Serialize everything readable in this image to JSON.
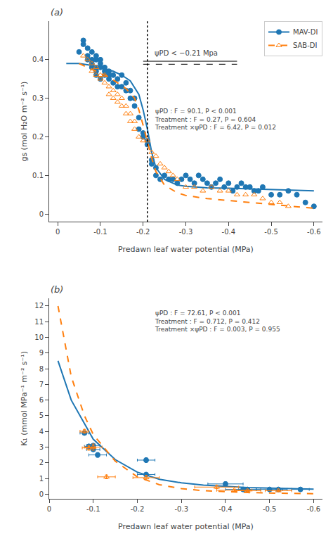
{
  "chart_data": [
    {
      "type": "scatter",
      "title": "(a)",
      "xlabel": "Predawn leaf water potential (MPa)",
      "ylabel": "gs (mol H₂O m⁻² s⁻¹)",
      "xlim": [
        0.02,
        -0.62
      ],
      "ylim": [
        -0.02,
        0.5
      ],
      "xticks": [
        0,
        -0.1,
        -0.2,
        -0.3,
        -0.4,
        -0.5,
        -0.6
      ],
      "yticks": [
        0,
        0.1,
        0.2,
        0.3,
        0.4
      ],
      "grid": false,
      "legend": "upper right",
      "vline_x": -0.21,
      "annotation": "ψPD < −0.21 Mpa",
      "stats": [
        "ψPD : F = 90.1, P < 0.001",
        "Treatment : F = 0.27, P = 0.604",
        "Treatment ×ψPD : F = 6.42, P = 0.012"
      ],
      "series": [
        {
          "name": "MAV-DI",
          "color": "#1f77b4",
          "marker": "circle",
          "line_style": "solid",
          "x": [
            -0.05,
            -0.06,
            -0.06,
            -0.07,
            -0.07,
            -0.07,
            -0.08,
            -0.08,
            -0.08,
            -0.08,
            -0.09,
            -0.09,
            -0.09,
            -0.09,
            -0.09,
            -0.1,
            -0.1,
            -0.1,
            -0.1,
            -0.11,
            -0.11,
            -0.11,
            -0.12,
            -0.12,
            -0.12,
            -0.13,
            -0.13,
            -0.14,
            -0.14,
            -0.15,
            -0.15,
            -0.16,
            -0.16,
            -0.17,
            -0.17,
            -0.18,
            -0.18,
            -0.19,
            -0.19,
            -0.2,
            -0.2,
            -0.21,
            -0.21,
            -0.22,
            -0.22,
            -0.23,
            -0.23,
            -0.24,
            -0.25,
            -0.26,
            -0.27,
            -0.28,
            -0.29,
            -0.3,
            -0.31,
            -0.32,
            -0.33,
            -0.34,
            -0.35,
            -0.36,
            -0.37,
            -0.38,
            -0.39,
            -0.4,
            -0.41,
            -0.42,
            -0.43,
            -0.44,
            -0.45,
            -0.46,
            -0.47,
            -0.48,
            -0.5,
            -0.52,
            -0.54,
            -0.56,
            -0.58,
            -0.6
          ],
          "values": [
            0.42,
            0.45,
            0.44,
            0.4,
            0.43,
            0.41,
            0.38,
            0.42,
            0.4,
            0.39,
            0.4,
            0.38,
            0.37,
            0.41,
            0.36,
            0.4,
            0.39,
            0.38,
            0.35,
            0.37,
            0.38,
            0.36,
            0.35,
            0.37,
            0.36,
            0.36,
            0.34,
            0.35,
            0.33,
            0.36,
            0.33,
            0.32,
            0.34,
            0.32,
            0.3,
            0.28,
            0.3,
            0.25,
            0.22,
            0.2,
            0.21,
            0.19,
            0.18,
            0.14,
            0.13,
            0.12,
            0.1,
            0.09,
            0.1,
            0.09,
            0.09,
            0.08,
            0.09,
            0.1,
            0.09,
            0.08,
            0.1,
            0.09,
            0.08,
            0.07,
            0.08,
            0.09,
            0.07,
            0.08,
            0.06,
            0.07,
            0.08,
            0.07,
            0.07,
            0.06,
            0.06,
            0.07,
            0.05,
            0.05,
            0.06,
            0.05,
            0.03,
            0.02
          ],
          "fit": {
            "x": [
              -0.02,
              -0.05,
              -0.08,
              -0.1,
              -0.13,
              -0.15,
              -0.17,
              -0.19,
              -0.2,
              -0.21,
              -0.22,
              -0.23,
              -0.25,
              -0.28,
              -0.3,
              -0.35,
              -0.4,
              -0.45,
              -0.5,
              -0.55,
              -0.6
            ],
            "values": [
              0.39,
              0.39,
              0.385,
              0.38,
              0.37,
              0.36,
              0.345,
              0.31,
              0.27,
              0.22,
              0.16,
              0.12,
              0.09,
              0.075,
              0.072,
              0.068,
              0.067,
              0.065,
              0.063,
              0.062,
              0.06
            ]
          }
        },
        {
          "name": "SAB-DI",
          "color": "#ff7f0e",
          "marker": "triangle-up-open",
          "line_style": "dash",
          "x": [
            -0.06,
            -0.07,
            -0.08,
            -0.08,
            -0.09,
            -0.09,
            -0.1,
            -0.1,
            -0.11,
            -0.11,
            -0.12,
            -0.12,
            -0.13,
            -0.13,
            -0.14,
            -0.14,
            -0.15,
            -0.15,
            -0.16,
            -0.16,
            -0.17,
            -0.17,
            -0.18,
            -0.18,
            -0.19,
            -0.2,
            -0.21,
            -0.22,
            -0.23,
            -0.24,
            -0.25,
            -0.26,
            -0.27,
            -0.28,
            -0.3,
            -0.32,
            -0.34,
            -0.36,
            -0.38,
            -0.4,
            -0.42,
            -0.44,
            -0.46,
            -0.48,
            -0.5,
            -0.52,
            -0.54
          ],
          "values": [
            0.41,
            0.4,
            0.37,
            0.39,
            0.36,
            0.38,
            0.36,
            0.35,
            0.36,
            0.34,
            0.33,
            0.31,
            0.32,
            0.3,
            0.31,
            0.29,
            0.3,
            0.28,
            0.28,
            0.26,
            0.24,
            0.26,
            0.22,
            0.24,
            0.2,
            0.19,
            0.19,
            0.16,
            0.15,
            0.13,
            0.12,
            0.11,
            0.1,
            0.09,
            0.07,
            0.07,
            0.06,
            0.07,
            0.06,
            0.06,
            0.05,
            0.05,
            0.05,
            0.04,
            0.03,
            0.03,
            0.02
          ],
          "fit": {
            "x": [
              -0.05,
              -0.08,
              -0.1,
              -0.12,
              -0.14,
              -0.16,
              -0.18,
              -0.19,
              -0.2,
              -0.21,
              -0.22,
              -0.23,
              -0.25,
              -0.28,
              -0.3,
              -0.35,
              -0.4,
              -0.45,
              -0.5,
              -0.55,
              -0.6
            ],
            "values": [
              0.39,
              0.375,
              0.365,
              0.355,
              0.34,
              0.325,
              0.3,
              0.27,
              0.23,
              0.185,
              0.145,
              0.11,
              0.075,
              0.055,
              0.048,
              0.04,
              0.035,
              0.03,
              0.025,
              0.02,
              0.015
            ]
          }
        }
      ]
    },
    {
      "type": "scatter",
      "title": "(b)",
      "xlabel": "Predawn leaf water potential (MPa)",
      "ylabel": "K₁ (mmol MPa⁻¹ m⁻² s⁻¹)",
      "xlim": [
        0.0,
        -0.62
      ],
      "ylim": [
        -0.3,
        12.5
      ],
      "xticks": [
        0,
        -0.1,
        -0.2,
        -0.3,
        -0.4,
        -0.5,
        -0.6
      ],
      "yticks": [
        0,
        1,
        2,
        3,
        4,
        5,
        6,
        7,
        8,
        9,
        10,
        11,
        12
      ],
      "grid": false,
      "stats": [
        "ψPD : F = 72.61, P < 0.001",
        "Treatment : F = 0.712, P = 0.412",
        "Treatment ×ψPD : F = 0.003, P = 0.955"
      ],
      "series": [
        {
          "name": "MAV-DI",
          "color": "#1f77b4",
          "marker": "circle",
          "line_style": "solid",
          "x": [
            -0.08,
            -0.09,
            -0.1,
            -0.1,
            -0.11,
            -0.22,
            -0.22,
            -0.4,
            -0.44,
            -0.45,
            -0.5,
            -0.52,
            -0.57
          ],
          "values": [
            3.9,
            3.05,
            3.1,
            2.85,
            2.5,
            2.17,
            1.25,
            0.65,
            0.3,
            0.3,
            0.3,
            0.3,
            0.3
          ],
          "xerr": [
            0.01,
            0.01,
            0.015,
            0.015,
            0.02,
            0.02,
            0.02,
            0.04,
            0.04,
            0.02,
            0.03,
            0.02,
            0.02
          ],
          "yerr": [
            0.08,
            0.1,
            0.12,
            0.1,
            0.15,
            0.15,
            0.1,
            0.12,
            0.06,
            0.05,
            0.05,
            0.04,
            0.04
          ],
          "fit": {
            "x": [
              -0.02,
              -0.05,
              -0.08,
              -0.1,
              -0.15,
              -0.2,
              -0.25,
              -0.3,
              -0.35,
              -0.4,
              -0.45,
              -0.5,
              -0.55,
              -0.6
            ],
            "values": [
              8.5,
              6.0,
              4.5,
              3.5,
              2.2,
              1.4,
              0.95,
              0.72,
              0.58,
              0.5,
              0.42,
              0.38,
              0.34,
              0.32
            ]
          }
        },
        {
          "name": "SAB-DI",
          "color": "#ff7f0e",
          "marker": "triangle-up-open",
          "line_style": "dash",
          "x": [
            -0.08,
            -0.09,
            -0.1,
            -0.13,
            -0.22,
            -0.38,
            -0.42,
            -0.45,
            -0.52
          ],
          "values": [
            4.01,
            2.95,
            3.0,
            1.1,
            1.05,
            0.45,
            0.25,
            0.22,
            0.22
          ],
          "xerr": [
            0.01,
            0.015,
            0.02,
            0.02,
            0.03,
            0.05,
            0.04,
            0.03,
            0.03
          ],
          "yerr": [
            0.12,
            0.15,
            0.2,
            0.12,
            0.15,
            0.1,
            0.06,
            0.05,
            0.05
          ],
          "fit": {
            "x": [
              -0.02,
              -0.05,
              -0.08,
              -0.1,
              -0.15,
              -0.2,
              -0.25,
              -0.3,
              -0.35,
              -0.4,
              -0.45,
              -0.5,
              -0.55,
              -0.6
            ],
            "values": [
              12.0,
              7.5,
              5.0,
              3.8,
              2.1,
              1.1,
              0.6,
              0.35,
              0.22,
              0.15,
              0.1,
              0.07,
              0.05,
              0.03
            ]
          }
        }
      ]
    }
  ]
}
